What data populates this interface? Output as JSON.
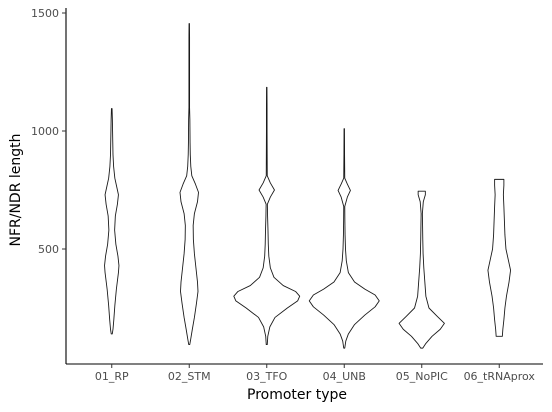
{
  "chart_data": {
    "type": "violin",
    "title": "",
    "xlabel": "Promoter type",
    "ylabel": "NFR/NDR length",
    "ylim": [
      0,
      1520
    ],
    "yticks": [
      500,
      1000,
      1500
    ],
    "grid": false,
    "legend": "none",
    "categories": [
      "01_RP",
      "02_STM",
      "03_TFO",
      "04_UNB",
      "05_NoPIC",
      "06_tRNAprox"
    ],
    "violins": [
      {
        "category": "01_RP",
        "min": 140,
        "max": 1095,
        "profile": [
          [
            140,
            0.5
          ],
          [
            160,
            1.2
          ],
          [
            200,
            2.0
          ],
          [
            260,
            3.0
          ],
          [
            330,
            4.5
          ],
          [
            400,
            6.5
          ],
          [
            430,
            7.0
          ],
          [
            470,
            6.0
          ],
          [
            520,
            4.0
          ],
          [
            580,
            2.8
          ],
          [
            640,
            3.5
          ],
          [
            690,
            5.5
          ],
          [
            730,
            6.5
          ],
          [
            760,
            5.0
          ],
          [
            800,
            3.0
          ],
          [
            850,
            1.8
          ],
          [
            900,
            1.2
          ],
          [
            950,
            1.0
          ],
          [
            1000,
            0.8
          ],
          [
            1050,
            0.6
          ],
          [
            1095,
            0.3
          ]
        ]
      },
      {
        "category": "02_STM",
        "min": 95,
        "max": 1455,
        "profile": [
          [
            95,
            0.5
          ],
          [
            120,
            1.5
          ],
          [
            160,
            3.0
          ],
          [
            210,
            5.0
          ],
          [
            270,
            7.0
          ],
          [
            320,
            8.5
          ],
          [
            360,
            8.0
          ],
          [
            420,
            6.5
          ],
          [
            480,
            5.0
          ],
          [
            540,
            4.0
          ],
          [
            600,
            3.8
          ],
          [
            650,
            5.0
          ],
          [
            700,
            8.0
          ],
          [
            740,
            9.0
          ],
          [
            775,
            6.0
          ],
          [
            810,
            2.5
          ],
          [
            850,
            1.5
          ],
          [
            900,
            1.0
          ],
          [
            950,
            0.8
          ],
          [
            1000,
            0.7
          ],
          [
            1050,
            0.6
          ],
          [
            1100,
            0.3
          ],
          [
            1150,
            0.3
          ],
          [
            1200,
            0.3
          ],
          [
            1250,
            0.3
          ],
          [
            1300,
            0.3
          ],
          [
            1350,
            0.3
          ],
          [
            1400,
            0.3
          ],
          [
            1455,
            0.2
          ]
        ]
      },
      {
        "category": "03_TFO",
        "min": 95,
        "max": 1185,
        "profile": [
          [
            95,
            0.5
          ],
          [
            130,
            1.0
          ],
          [
            170,
            3.0
          ],
          [
            210,
            8.0
          ],
          [
            250,
            20.0
          ],
          [
            280,
            30.0
          ],
          [
            300,
            32.0
          ],
          [
            320,
            28.0
          ],
          [
            345,
            16.0
          ],
          [
            380,
            7.0
          ],
          [
            420,
            3.5
          ],
          [
            470,
            2.0
          ],
          [
            520,
            1.5
          ],
          [
            580,
            1.2
          ],
          [
            640,
            0.8
          ],
          [
            690,
            0.6
          ],
          [
            720,
            3.5
          ],
          [
            750,
            7.5
          ],
          [
            780,
            3.5
          ],
          [
            810,
            0.5
          ],
          [
            900,
            0.4
          ],
          [
            1000,
            0.3
          ],
          [
            1100,
            0.3
          ],
          [
            1185,
            0.2
          ]
        ]
      },
      {
        "category": "04_UNB",
        "min": 80,
        "max": 1010,
        "profile": [
          [
            80,
            0.5
          ],
          [
            110,
            1.5
          ],
          [
            140,
            4.0
          ],
          [
            180,
            10.0
          ],
          [
            220,
            20.0
          ],
          [
            255,
            30.0
          ],
          [
            280,
            34.0
          ],
          [
            305,
            30.0
          ],
          [
            330,
            20.0
          ],
          [
            360,
            10.0
          ],
          [
            400,
            4.0
          ],
          [
            450,
            2.0
          ],
          [
            500,
            1.2
          ],
          [
            560,
            0.8
          ],
          [
            620,
            0.6
          ],
          [
            680,
            0.5
          ],
          [
            720,
            3.0
          ],
          [
            748,
            6.0
          ],
          [
            775,
            3.0
          ],
          [
            800,
            0.5
          ],
          [
            900,
            0.3
          ],
          [
            1010,
            0.2
          ]
        ]
      },
      {
        "category": "05_NoPIC",
        "min": 80,
        "max": 745,
        "profile": [
          [
            80,
            1.0
          ],
          [
            100,
            4.0
          ],
          [
            130,
            10.0
          ],
          [
            160,
            18.0
          ],
          [
            185,
            22.0
          ],
          [
            215,
            15.0
          ],
          [
            250,
            7.0
          ],
          [
            300,
            4.0
          ],
          [
            360,
            3.0
          ],
          [
            420,
            2.0
          ],
          [
            480,
            1.3
          ],
          [
            540,
            1.0
          ],
          [
            600,
            0.8
          ],
          [
            650,
            0.6
          ],
          [
            700,
            1.5
          ],
          [
            730,
            3.5
          ],
          [
            745,
            3.5
          ]
        ]
      },
      {
        "category": "06_tRNAprox",
        "min": 130,
        "max": 795,
        "profile": [
          [
            130,
            3.0
          ],
          [
            160,
            3.5
          ],
          [
            200,
            4.5
          ],
          [
            250,
            5.5
          ],
          [
            300,
            7.0
          ],
          [
            360,
            9.5
          ],
          [
            410,
            11.0
          ],
          [
            450,
            9.0
          ],
          [
            500,
            6.5
          ],
          [
            560,
            5.5
          ],
          [
            620,
            5.0
          ],
          [
            680,
            4.5
          ],
          [
            730,
            4.0
          ],
          [
            770,
            4.5
          ],
          [
            795,
            4.5
          ]
        ]
      }
    ]
  }
}
